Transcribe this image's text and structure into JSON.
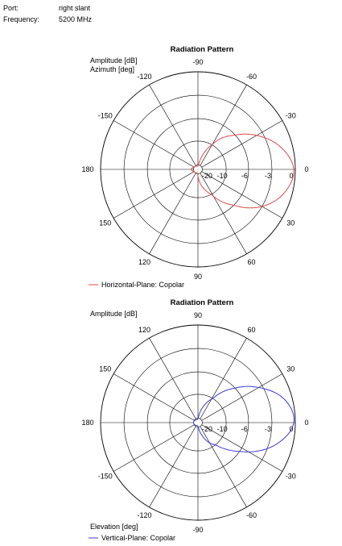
{
  "info": {
    "port_label": "Port:",
    "port_value": "right slant",
    "frequency_label": "Frequency:",
    "frequency_value": "5200 MHz"
  },
  "chart_data": [
    {
      "type": "polar-line",
      "title": "Radiation Pattern",
      "radial_label": "Amplitude [dB]",
      "angle_label": "Azimuth [deg]",
      "angle_label_position": "top-left",
      "radial_ticks": [
        -20,
        -10,
        -6,
        -3,
        0
      ],
      "angle_ticks": [
        -90,
        -60,
        -30,
        0,
        30,
        60,
        90,
        120,
        150,
        180,
        -150,
        -120
      ],
      "angle_orientation": "clockwise, 0 at right, -90 at top",
      "grid": true,
      "legend": "bottom-left",
      "series": [
        {
          "name": "Horizontal-Plane: Copolar",
          "color": "#e04a4a",
          "angles": [
            -180,
            -150,
            -120,
            -105,
            -90,
            -75,
            -60,
            -45,
            -30,
            -15,
            0,
            15,
            30,
            45,
            60,
            75,
            90,
            105,
            120,
            150,
            180
          ],
          "values_db": [
            -19,
            -20,
            -21,
            -23,
            -22,
            -17,
            -10,
            -6.5,
            -3.8,
            -1.5,
            -0.2,
            -1,
            -3,
            -6,
            -9.5,
            -14,
            -19,
            -22,
            -21,
            -20,
            -19
          ]
        }
      ]
    },
    {
      "type": "polar-line",
      "title": "Radiation Pattern",
      "radial_label": "Amplitude [dB]",
      "angle_label": "Elevation [deg]",
      "angle_label_position": "bottom-left",
      "radial_ticks": [
        -20,
        -10,
        -6,
        -3,
        0
      ],
      "angle_ticks": [
        90,
        60,
        30,
        0,
        -30,
        -60,
        -90,
        -120,
        -150,
        180,
        150,
        120
      ],
      "angle_orientation": "counter-clockwise, 0 at right, 90 at top",
      "grid": true,
      "legend": "bottom-left",
      "series": [
        {
          "name": "Vertical-Plane: Copolar",
          "color": "#3a3ad8",
          "angles": [
            180,
            150,
            120,
            105,
            90,
            75,
            60,
            45,
            30,
            15,
            0,
            -15,
            -30,
            -45,
            -60,
            -75,
            -90,
            -105,
            -120,
            -150,
            -180
          ],
          "values_db": [
            -20,
            -21,
            -22,
            -23,
            -21,
            -16,
            -10.5,
            -6.5,
            -3.5,
            -1,
            -0.2,
            -2,
            -5,
            -8.5,
            -12,
            -17,
            -21,
            -23,
            -22,
            -21,
            -20
          ]
        }
      ]
    }
  ]
}
